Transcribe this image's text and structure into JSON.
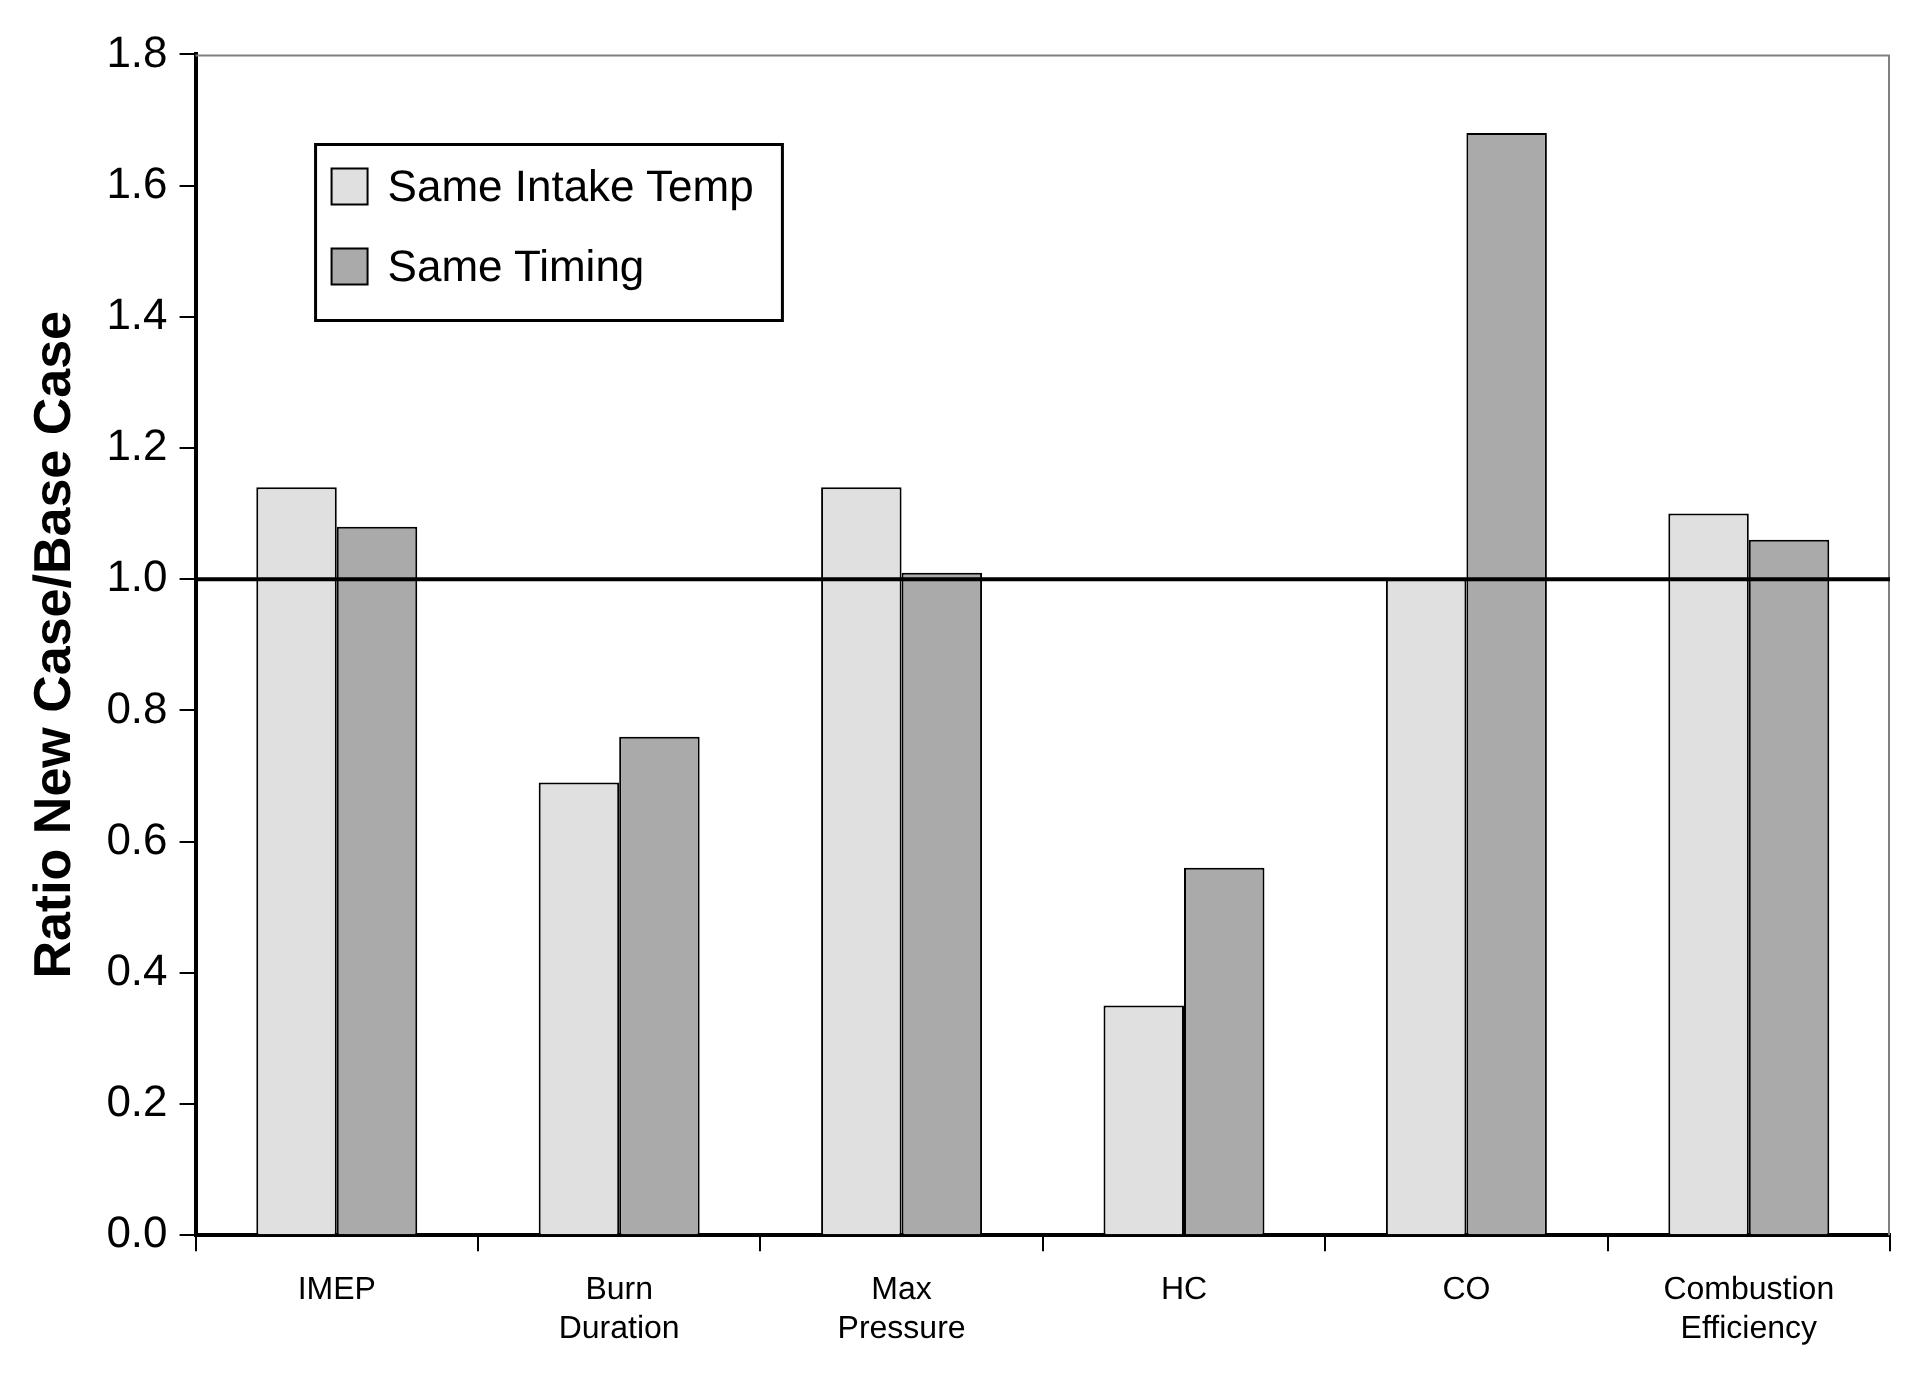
{
  "chart_data": {
    "type": "bar",
    "ylabel": "Ratio New Case/Base Case",
    "categories": [
      "IMEP",
      "Burn Duration",
      "Max Pressure",
      "HC",
      "CO",
      "Combustion Efficiency"
    ],
    "series": [
      {
        "name": "Same Intake Temp",
        "color": "#e0e0e0",
        "values": [
          1.14,
          0.69,
          1.14,
          0.35,
          1.0,
          1.1
        ]
      },
      {
        "name": "Same Timing",
        "color": "#aaaaaa",
        "values": [
          1.08,
          0.76,
          1.01,
          0.56,
          1.68,
          1.06
        ]
      }
    ],
    "ylim": [
      0,
      1.8
    ],
    "yticks": [
      {
        "value": 0,
        "label": "0.0"
      },
      0.2,
      0.4,
      0.6,
      0.8,
      {
        "value": 1,
        "label": "1.0"
      },
      1.2,
      1.4,
      1.6,
      1.8
    ],
    "ref_lines": [
      {
        "axis": "y",
        "value": 1.0,
        "color": "#000000"
      }
    ],
    "grid": false,
    "legend": "top left"
  }
}
